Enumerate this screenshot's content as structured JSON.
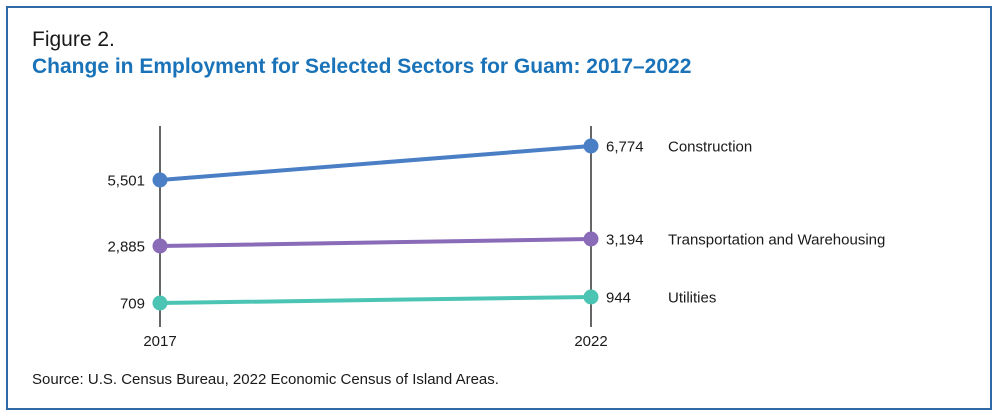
{
  "figure_label": "Figure 2.",
  "title": "Change in Employment for Selected Sectors for Guam: 2017–2022",
  "source": "Source: U.S. Census Bureau, 2022 Economic Census of Island Areas.",
  "chart_data": {
    "type": "line",
    "chart_style": "slope",
    "x": [
      "2017",
      "2022"
    ],
    "series": [
      {
        "name": "Construction",
        "values": [
          5501,
          6774
        ],
        "labels": [
          "5,501",
          "6,774"
        ],
        "color": "#4a7fc6"
      },
      {
        "name": "Transportation and Warehousing",
        "values": [
          2885,
          3194
        ],
        "labels": [
          "2,885",
          "3,194"
        ],
        "color": "#8a6bb8"
      },
      {
        "name": "Utilities",
        "values": [
          709,
          944
        ],
        "labels": [
          "709",
          "944"
        ],
        "color": "#4cc4b4"
      }
    ],
    "colors": {
      "axis": "#333333",
      "border": "#2f6aa6",
      "title": "#1a73b8"
    }
  }
}
